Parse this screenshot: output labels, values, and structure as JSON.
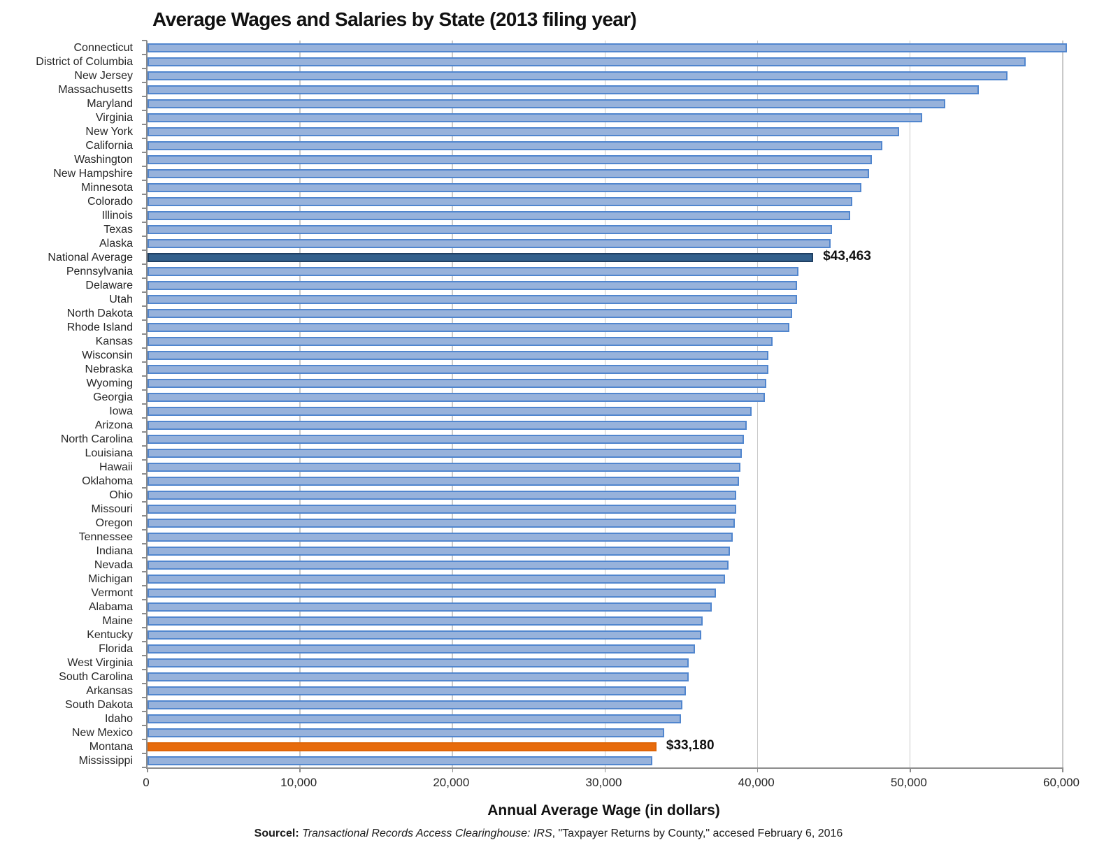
{
  "source": {
    "prefix": "Sourcel:",
    "italic": " Transactional Records Access Clearinghouse: IRS",
    "rest": ", \"Taxpayer Returns by County,\" accesed February 6, 2016"
  },
  "chart_data": {
    "type": "bar",
    "orientation": "horizontal",
    "title": "Average Wages and Salaries by State (2013 filing year)",
    "xlabel": "Annual Average Wage (in dollars)",
    "ylabel": "",
    "xlim": [
      0,
      60000
    ],
    "x_ticks": [
      0,
      10000,
      20000,
      30000,
      40000,
      50000,
      60000
    ],
    "x_tick_labels": [
      "0",
      "10,000",
      "20,000",
      "30,000",
      "40,000",
      "50,000",
      "60,000"
    ],
    "grid": "vertical-gridlines",
    "legend": "none",
    "colors": {
      "bar_fill": "#97b2db",
      "bar_border": "#5186ce",
      "national_average_fill": "#33608c",
      "national_average_border": "#1f3f63",
      "montana_fill": "#e76b0c",
      "gridline": "#c9c9c9",
      "axis": "#8c8c8c"
    },
    "bars": [
      {
        "label": "Connecticut",
        "value": 60100
      },
      {
        "label": "District of Columbia",
        "value": 57400
      },
      {
        "label": "New Jersey",
        "value": 56200
      },
      {
        "label": "Massachusetts",
        "value": 54300
      },
      {
        "label": "Maryland",
        "value": 52100
      },
      {
        "label": "Virginia",
        "value": 50600
      },
      {
        "label": "New York",
        "value": 49100
      },
      {
        "label": "California",
        "value": 48000
      },
      {
        "label": "Washington",
        "value": 47300
      },
      {
        "label": "New Hampshire",
        "value": 47100
      },
      {
        "label": "Minnesota",
        "value": 46600
      },
      {
        "label": "Colorado",
        "value": 46000
      },
      {
        "label": "Illinois",
        "value": 45900
      },
      {
        "label": "Texas",
        "value": 44700
      },
      {
        "label": "Alaska",
        "value": 44600
      },
      {
        "label": "National Average",
        "value": 43463,
        "highlight": "dark",
        "value_label": "$43,463"
      },
      {
        "label": "Pennsylvania",
        "value": 42500
      },
      {
        "label": "Delaware",
        "value": 42400
      },
      {
        "label": "Utah",
        "value": 42400
      },
      {
        "label": "North Dakota",
        "value": 42100
      },
      {
        "label": "Rhode Island",
        "value": 41900
      },
      {
        "label": "Kansas",
        "value": 40800
      },
      {
        "label": "Wisconsin",
        "value": 40500
      },
      {
        "label": "Nebraska",
        "value": 40500
      },
      {
        "label": "Wyoming",
        "value": 40400
      },
      {
        "label": "Georgia",
        "value": 40300
      },
      {
        "label": "Iowa",
        "value": 39400
      },
      {
        "label": "Arizona",
        "value": 39100
      },
      {
        "label": "North Carolina",
        "value": 38900
      },
      {
        "label": "Louisiana",
        "value": 38800
      },
      {
        "label": "Hawaii",
        "value": 38700
      },
      {
        "label": "Oklahoma",
        "value": 38600
      },
      {
        "label": "Ohio",
        "value": 38400
      },
      {
        "label": "Missouri",
        "value": 38400
      },
      {
        "label": "Oregon",
        "value": 38300
      },
      {
        "label": "Tennessee",
        "value": 38200
      },
      {
        "label": "Indiana",
        "value": 38000
      },
      {
        "label": "Nevada",
        "value": 37900
      },
      {
        "label": "Michigan",
        "value": 37700
      },
      {
        "label": "Vermont",
        "value": 37100
      },
      {
        "label": "Alabama",
        "value": 36800
      },
      {
        "label": "Maine",
        "value": 36200
      },
      {
        "label": "Kentucky",
        "value": 36100
      },
      {
        "label": "Florida",
        "value": 35700
      },
      {
        "label": "West Virginia",
        "value": 35300
      },
      {
        "label": "South Carolina",
        "value": 35300
      },
      {
        "label": "Arkansas",
        "value": 35100
      },
      {
        "label": "South Dakota",
        "value": 34900
      },
      {
        "label": "Idaho",
        "value": 34800
      },
      {
        "label": "New Mexico",
        "value": 33700
      },
      {
        "label": "Montana",
        "value": 33180,
        "highlight": "orange",
        "value_label": "$33,180"
      },
      {
        "label": "Mississippi",
        "value": 32900
      }
    ]
  }
}
